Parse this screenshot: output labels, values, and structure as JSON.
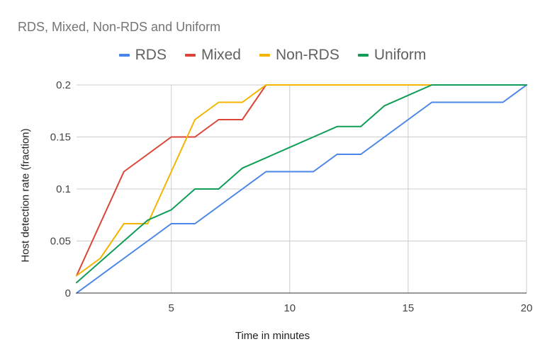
{
  "chart_data": {
    "type": "line",
    "title": "RDS, Mixed, Non-RDS and Uniform",
    "xlabel": "Time in minutes",
    "ylabel": "Host detection rate (fraction)",
    "xlim": [
      1,
      20
    ],
    "ylim": [
      0,
      0.2
    ],
    "x_ticks": [
      "5",
      "10",
      "15",
      "20"
    ],
    "x_tick_values": [
      5,
      10,
      15,
      20
    ],
    "y_ticks": [
      "0",
      "0.05",
      "0.1",
      "0.15",
      "0.2"
    ],
    "y_tick_values": [
      0,
      0.05,
      0.1,
      0.15,
      0.2
    ],
    "grid": true,
    "legend_position": "top",
    "series": [
      {
        "name": "RDS",
        "color": "#4a86e8",
        "points": [
          [
            1,
            0
          ],
          [
            2,
            0.0167
          ],
          [
            3,
            0.0333
          ],
          [
            4,
            0.05
          ],
          [
            5,
            0.0667
          ],
          [
            6,
            0.0667
          ],
          [
            7,
            0.0833
          ],
          [
            8,
            0.1
          ],
          [
            9,
            0.1167
          ],
          [
            10,
            0.1167
          ],
          [
            11,
            0.1167
          ],
          [
            12,
            0.1333
          ],
          [
            13,
            0.1333
          ],
          [
            14,
            0.15
          ],
          [
            15,
            0.1667
          ],
          [
            16,
            0.1833
          ],
          [
            17,
            0.1833
          ],
          [
            18,
            0.1833
          ],
          [
            19,
            0.1833
          ],
          [
            20,
            0.2
          ]
        ]
      },
      {
        "name": "Mixed",
        "color": "#db4437",
        "points": [
          [
            1,
            0.0167
          ],
          [
            2,
            0.0667
          ],
          [
            3,
            0.1167
          ],
          [
            4,
            0.1333
          ],
          [
            5,
            0.15
          ],
          [
            6,
            0.15
          ],
          [
            7,
            0.1667
          ],
          [
            8,
            0.1667
          ],
          [
            9,
            0.2
          ],
          [
            10,
            0.2
          ],
          [
            20,
            0.2
          ]
        ]
      },
      {
        "name": "Non-RDS",
        "color": "#f4b400",
        "points": [
          [
            1,
            0.0167
          ],
          [
            2,
            0.0333
          ],
          [
            3,
            0.0667
          ],
          [
            4,
            0.0667
          ],
          [
            5,
            0.1167
          ],
          [
            6,
            0.1667
          ],
          [
            7,
            0.1833
          ],
          [
            8,
            0.1833
          ],
          [
            9,
            0.2
          ],
          [
            10,
            0.2
          ],
          [
            20,
            0.2
          ]
        ]
      },
      {
        "name": "Uniform",
        "color": "#0f9d58",
        "points": [
          [
            1,
            0.01
          ],
          [
            2,
            0.03
          ],
          [
            3,
            0.05
          ],
          [
            4,
            0.07
          ],
          [
            5,
            0.08
          ],
          [
            6,
            0.1
          ],
          [
            7,
            0.1
          ],
          [
            8,
            0.12
          ],
          [
            9,
            0.13
          ],
          [
            10,
            0.14
          ],
          [
            11,
            0.15
          ],
          [
            12,
            0.16
          ],
          [
            13,
            0.16
          ],
          [
            14,
            0.18
          ],
          [
            15,
            0.19
          ],
          [
            16,
            0.2
          ],
          [
            17,
            0.2
          ],
          [
            18,
            0.2
          ],
          [
            19,
            0.2
          ],
          [
            20,
            0.2
          ]
        ]
      }
    ]
  }
}
